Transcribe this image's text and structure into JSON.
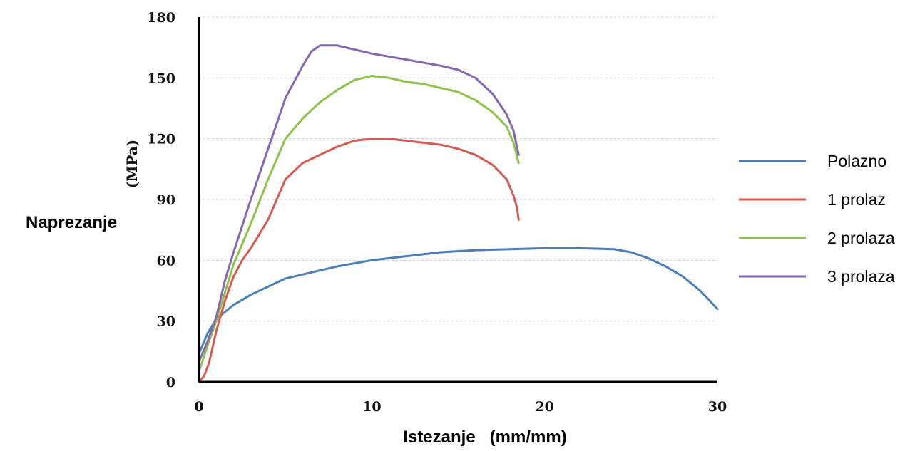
{
  "chart_data": {
    "type": "line",
    "xlabel": "Istezanje   (mm/mm)",
    "ylabel": "Naprezanje",
    "ylabel_unit": "(MPa)",
    "xlim": [
      0,
      30
    ],
    "ylim": [
      0,
      180
    ],
    "x_ticks": [
      0,
      10,
      20,
      30
    ],
    "y_ticks": [
      0,
      30,
      60,
      90,
      120,
      150,
      180
    ],
    "grid": "horizontal dashed",
    "legend_position": "right",
    "series": [
      {
        "name": "Polazno",
        "color": "#4a7ebb",
        "points": [
          [
            0,
            14
          ],
          [
            0.5,
            24
          ],
          [
            1,
            31
          ],
          [
            2,
            38
          ],
          [
            3,
            43
          ],
          [
            4,
            47
          ],
          [
            5,
            51
          ],
          [
            6,
            53
          ],
          [
            8,
            57
          ],
          [
            10,
            60
          ],
          [
            12,
            62
          ],
          [
            14,
            64
          ],
          [
            16,
            65
          ],
          [
            18,
            65.5
          ],
          [
            20,
            66
          ],
          [
            22,
            66
          ],
          [
            24,
            65.5
          ],
          [
            25,
            64
          ],
          [
            26,
            61
          ],
          [
            27,
            57
          ],
          [
            28,
            52
          ],
          [
            29,
            45
          ],
          [
            30,
            36
          ]
        ]
      },
      {
        "name": "1 prolaz",
        "color": "#d55a52",
        "points": [
          [
            0,
            0
          ],
          [
            0.3,
            3
          ],
          [
            0.6,
            10
          ],
          [
            1,
            25
          ],
          [
            1.5,
            40
          ],
          [
            2,
            52
          ],
          [
            2.5,
            60
          ],
          [
            3,
            66
          ],
          [
            4,
            80
          ],
          [
            5,
            100
          ],
          [
            6,
            108
          ],
          [
            7,
            112
          ],
          [
            8,
            116
          ],
          [
            9,
            119
          ],
          [
            10,
            120
          ],
          [
            11,
            120
          ],
          [
            12,
            119
          ],
          [
            13,
            118
          ],
          [
            14,
            117
          ],
          [
            15,
            115
          ],
          [
            16,
            112
          ],
          [
            17,
            107
          ],
          [
            17.8,
            100
          ],
          [
            18.2,
            92
          ],
          [
            18.4,
            86
          ],
          [
            18.5,
            80
          ]
        ]
      },
      {
        "name": "2 prolaza",
        "color": "#8ec24a",
        "points": [
          [
            0,
            5
          ],
          [
            0.5,
            18
          ],
          [
            1,
            30
          ],
          [
            1.5,
            44
          ],
          [
            2,
            58
          ],
          [
            3,
            78
          ],
          [
            4,
            100
          ],
          [
            5,
            120
          ],
          [
            6,
            130
          ],
          [
            7,
            138
          ],
          [
            8,
            144
          ],
          [
            9,
            149
          ],
          [
            10,
            151
          ],
          [
            11,
            150
          ],
          [
            12,
            148
          ],
          [
            13,
            147
          ],
          [
            14,
            145
          ],
          [
            15,
            143
          ],
          [
            16,
            139
          ],
          [
            17,
            133
          ],
          [
            17.8,
            126
          ],
          [
            18.2,
            118
          ],
          [
            18.5,
            108
          ]
        ]
      },
      {
        "name": "3 prolaza",
        "color": "#8467b0",
        "points": [
          [
            0,
            10
          ],
          [
            0.5,
            20
          ],
          [
            1,
            32
          ],
          [
            1.5,
            50
          ],
          [
            2,
            64
          ],
          [
            3,
            90
          ],
          [
            4,
            115
          ],
          [
            5,
            140
          ],
          [
            6,
            156
          ],
          [
            6.5,
            163
          ],
          [
            7,
            166
          ],
          [
            8,
            166
          ],
          [
            9,
            164
          ],
          [
            10,
            162
          ],
          [
            12,
            159
          ],
          [
            14,
            156
          ],
          [
            15,
            154
          ],
          [
            16,
            150
          ],
          [
            17,
            142
          ],
          [
            17.8,
            132
          ],
          [
            18.2,
            124
          ],
          [
            18.5,
            112
          ]
        ]
      }
    ]
  }
}
